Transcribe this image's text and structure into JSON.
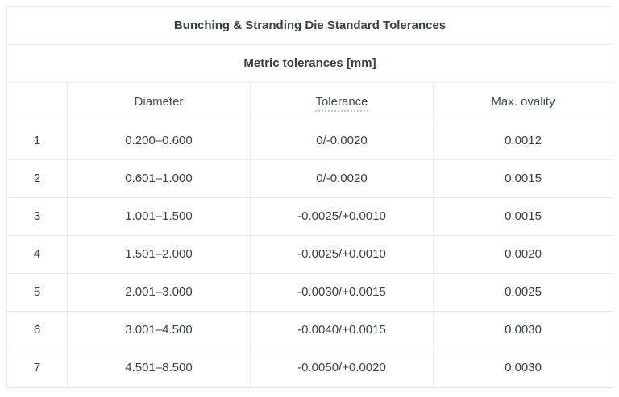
{
  "table": {
    "title": "Bunching & Stranding Die Standard Tolerances",
    "subtitle": "Metric tolerances [mm]",
    "columns": [
      "",
      "Diameter",
      "Tolerance",
      "Max. ovality"
    ],
    "rows": [
      {
        "num": "1",
        "diameter": "0.200–0.600",
        "tolerance": "0/-0.0020",
        "ovality": "0.0012"
      },
      {
        "num": "2",
        "diameter": "0.601–1.000",
        "tolerance": "0/-0.0020",
        "ovality": "0.0015"
      },
      {
        "num": "3",
        "diameter": "1.001–1.500",
        "tolerance": "-0.0025/+0.0010",
        "ovality": "0.0015"
      },
      {
        "num": "4",
        "diameter": "1.501–2.000",
        "tolerance": "-0.0025/+0.0010",
        "ovality": "0.0020"
      },
      {
        "num": "5",
        "diameter": "2.001–3.000",
        "tolerance": "-0.0030/+0.0015",
        "ovality": "0.0025"
      },
      {
        "num": "6",
        "diameter": "3.001–4.500",
        "tolerance": "-0.0040/+0.0015",
        "ovality": "0.0030"
      },
      {
        "num": "7",
        "diameter": "4.501–8.500",
        "tolerance": "-0.0050/+0.0020",
        "ovality": "0.0030"
      }
    ],
    "colors": {
      "border": "#ebebeb",
      "outer-border": "#e3e3e3",
      "title-text": "#2d333b",
      "body-text": "#3a4047",
      "header-text": "#454c54",
      "tolerance-underline": "#c6cacd",
      "page-bg": "#ffffff"
    }
  }
}
